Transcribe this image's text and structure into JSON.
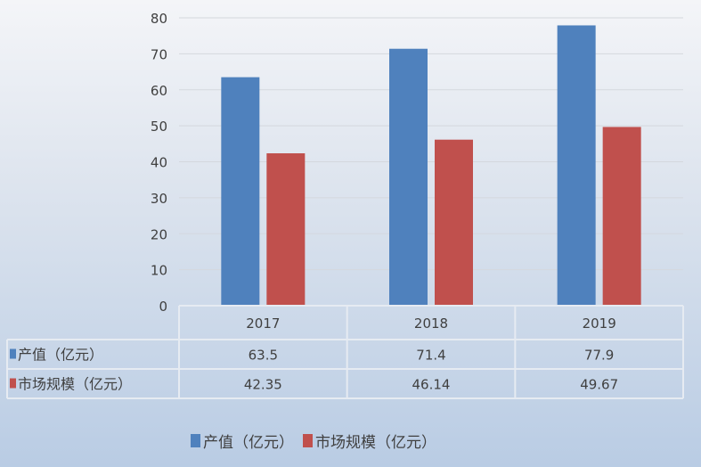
{
  "chart_data": {
    "type": "bar",
    "categories": [
      "2017",
      "2018",
      "2019"
    ],
    "series": [
      {
        "name": "产值（亿元）",
        "color": "#4f81bd",
        "values": [
          63.5,
          71.4,
          77.9
        ],
        "labels": [
          "63.5",
          "71.4",
          "77.9"
        ]
      },
      {
        "name": "市场规模（亿元）",
        "color": "#c0504d",
        "values": [
          42.35,
          46.14,
          49.67
        ],
        "labels": [
          "42.35",
          "46.14",
          "49.67"
        ]
      }
    ],
    "ylim": [
      0,
      80
    ],
    "yticks": [
      "0",
      "10",
      "20",
      "30",
      "40",
      "50",
      "60",
      "70",
      "80"
    ],
    "grid": true,
    "data_table": true,
    "legend": "bottom"
  }
}
